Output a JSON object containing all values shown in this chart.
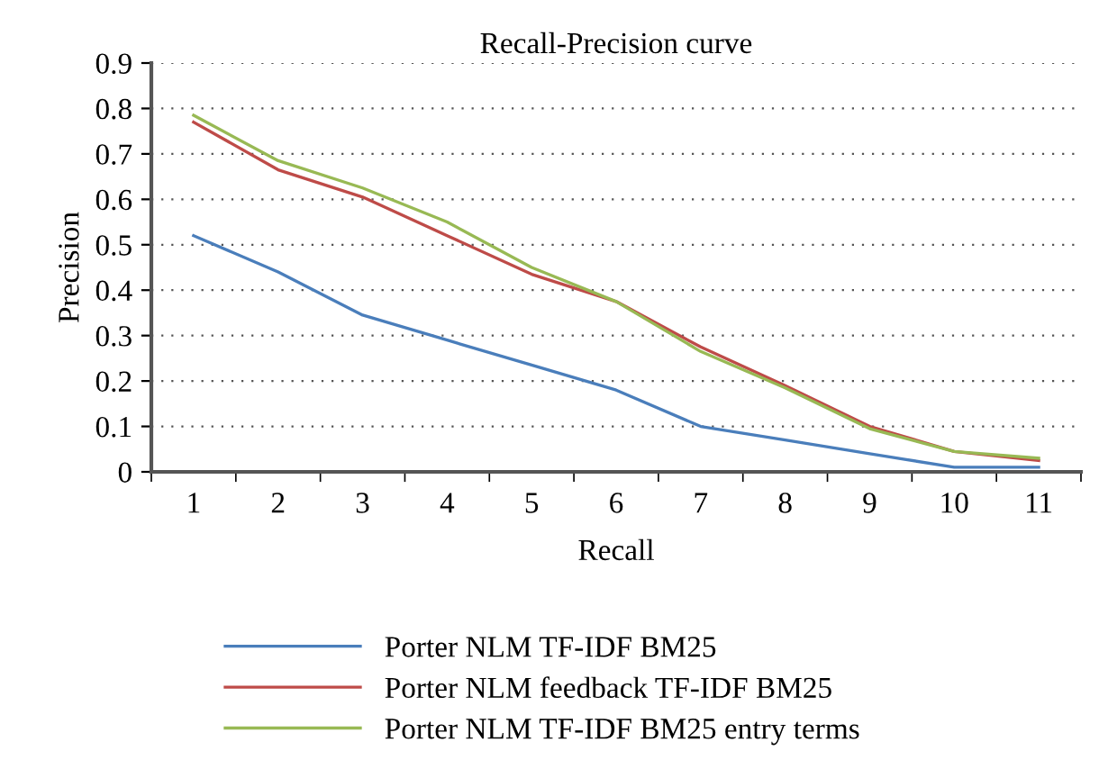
{
  "chart_data": {
    "type": "line",
    "title": "Recall-Precision curve",
    "xlabel": "Recall",
    "ylabel": "Precision",
    "categories": [
      "1",
      "2",
      "3",
      "4",
      "5",
      "6",
      "7",
      "8",
      "9",
      "10",
      "11"
    ],
    "series": [
      {
        "name": "Porter NLM TF-IDF BM25",
        "color": "#4a7ebb",
        "values": [
          0.52,
          0.44,
          0.345,
          0.29,
          0.235,
          0.18,
          0.1,
          0.07,
          0.04,
          0.01,
          0.01
        ]
      },
      {
        "name": "Porter NLM feedback TF-IDF BM25",
        "color": "#be4b48",
        "values": [
          0.77,
          0.665,
          0.605,
          0.52,
          0.435,
          0.375,
          0.275,
          0.19,
          0.1,
          0.045,
          0.025
        ]
      },
      {
        "name": "Porter NLM TF-IDF BM25 entry terms",
        "color": "#98b954",
        "values": [
          0.785,
          0.685,
          0.625,
          0.55,
          0.45,
          0.375,
          0.265,
          0.185,
          0.095,
          0.045,
          0.03
        ]
      }
    ],
    "ylim": [
      0,
      0.9
    ],
    "yticks": [
      0,
      0.1,
      0.2,
      0.3,
      0.4,
      0.5,
      0.6,
      0.7,
      0.8,
      0.9
    ],
    "grid": "y",
    "legend": "bottom",
    "marker": "none",
    "line_style": "solid"
  }
}
